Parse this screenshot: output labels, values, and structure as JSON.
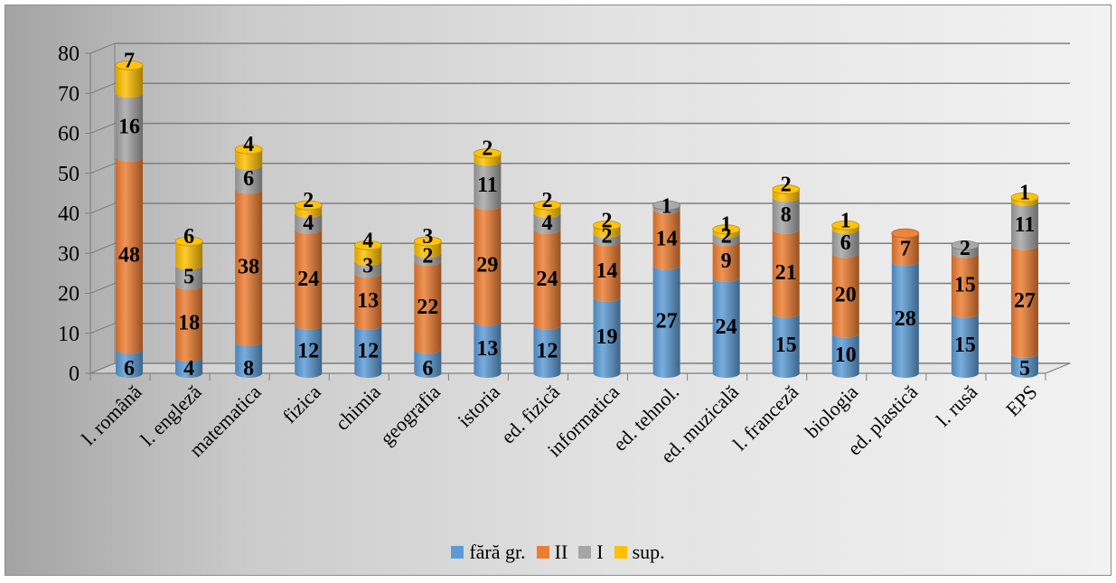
{
  "chart_data": {
    "type": "bar",
    "stacked": true,
    "three_d": true,
    "categories": [
      "l. română",
      "l. engleză",
      "matematica",
      "fizica",
      "chimia",
      "geografia",
      "istoria",
      "ed. fizică",
      "informatica",
      "ed. tehnol.",
      "ed. muzicală",
      "l. franceză",
      "biologia",
      "ed. plastică",
      "l. rusă",
      "EPS"
    ],
    "series": [
      {
        "name": "fără gr.",
        "color": "#5b9bd5",
        "values": [
          6,
          4,
          8,
          12,
          12,
          6,
          13,
          12,
          19,
          27,
          24,
          15,
          10,
          28,
          15,
          5
        ]
      },
      {
        "name": "II",
        "color": "#ed7d31",
        "values": [
          48,
          18,
          38,
          24,
          13,
          22,
          29,
          24,
          14,
          14,
          9,
          21,
          20,
          7,
          15,
          27
        ]
      },
      {
        "name": "I",
        "color": "#a5a5a5",
        "values": [
          16,
          5,
          6,
          4,
          3,
          2,
          11,
          4,
          2,
          1,
          2,
          8,
          6,
          0,
          2,
          11
        ]
      },
      {
        "name": "sup.",
        "color": "#ffc000",
        "values": [
          7,
          6,
          4,
          2,
          4,
          3,
          2,
          2,
          2,
          0,
          1,
          2,
          1,
          0,
          0,
          1
        ]
      }
    ],
    "labels": [
      [
        "6",
        "48",
        "16",
        "7"
      ],
      [
        "4",
        "18",
        "5",
        "6"
      ],
      [
        "8",
        "38",
        "6",
        "4"
      ],
      [
        "12",
        "24",
        "4",
        "2"
      ],
      [
        "12",
        "13",
        "3",
        "4"
      ],
      [
        "6",
        "22",
        "2",
        "3"
      ],
      [
        "13",
        "29",
        "11",
        "2"
      ],
      [
        "12",
        "24",
        "4",
        "2"
      ],
      [
        "19",
        "14",
        "2",
        "2"
      ],
      [
        "27",
        "14",
        "1",
        ""
      ],
      [
        "24",
        "9",
        "2",
        "1"
      ],
      [
        "15",
        "21",
        "8",
        "2"
      ],
      [
        "10",
        "20",
        "6",
        "1"
      ],
      [
        "28",
        "7",
        "",
        ""
      ],
      [
        "15",
        "15",
        "2",
        ""
      ],
      [
        "5",
        "27",
        "11",
        "1"
      ]
    ],
    "yticks": [
      "0",
      "10",
      "20",
      "30",
      "40",
      "50",
      "60",
      "70",
      "80"
    ],
    "ylim": [
      0,
      80
    ],
    "grid": true,
    "legend_position": "bottom"
  }
}
